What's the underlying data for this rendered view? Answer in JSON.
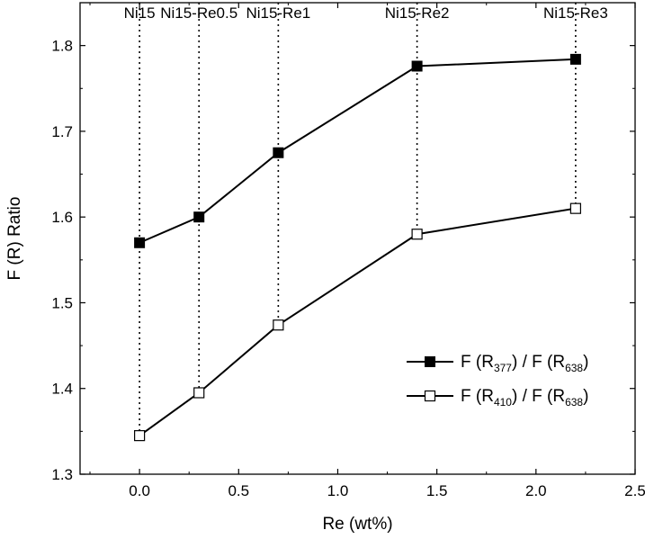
{
  "chart_data": {
    "type": "line",
    "xlabel": "Re (wt%)",
    "ylabel": "F (R)  Ratio",
    "xlim": [
      -0.3,
      2.5
    ],
    "ylim": [
      1.3,
      1.85
    ],
    "x_ticks": [
      "0.0",
      "0.5",
      "1.0",
      "1.5",
      "2.0",
      "2.5"
    ],
    "y_ticks": [
      "1.3",
      "1.4",
      "1.5",
      "1.6",
      "1.7",
      "1.8"
    ],
    "grid": false,
    "legend_position": "bottom-right",
    "sample_labels": [
      {
        "text": "Ni15",
        "x": 0.0
      },
      {
        "text": "Ni15-Re0.5",
        "x": 0.3
      },
      {
        "text": "Ni15-Re1",
        "x": 0.7
      },
      {
        "text": "Ni15-Re2",
        "x": 1.4
      },
      {
        "text": "Ni15-Re3",
        "x": 2.2
      }
    ],
    "x": [
      0.0,
      0.3,
      0.7,
      1.4,
      2.2
    ],
    "series": [
      {
        "legend_main": "F (R",
        "legend_sub1": "377",
        "legend_mid": ") / F (R",
        "legend_sub2": "638",
        "legend_end": ")",
        "marker": "filled-square",
        "values": [
          1.57,
          1.6,
          1.675,
          1.776,
          1.784
        ]
      },
      {
        "legend_main": "F (R",
        "legend_sub1": "410",
        "legend_mid": ") / F (R",
        "legend_sub2": "638",
        "legend_end": ")",
        "marker": "open-square",
        "values": [
          1.345,
          1.395,
          1.474,
          1.58,
          1.61
        ]
      }
    ],
    "colors": {
      "line": "#000000",
      "open_fill": "#ffffff"
    }
  }
}
